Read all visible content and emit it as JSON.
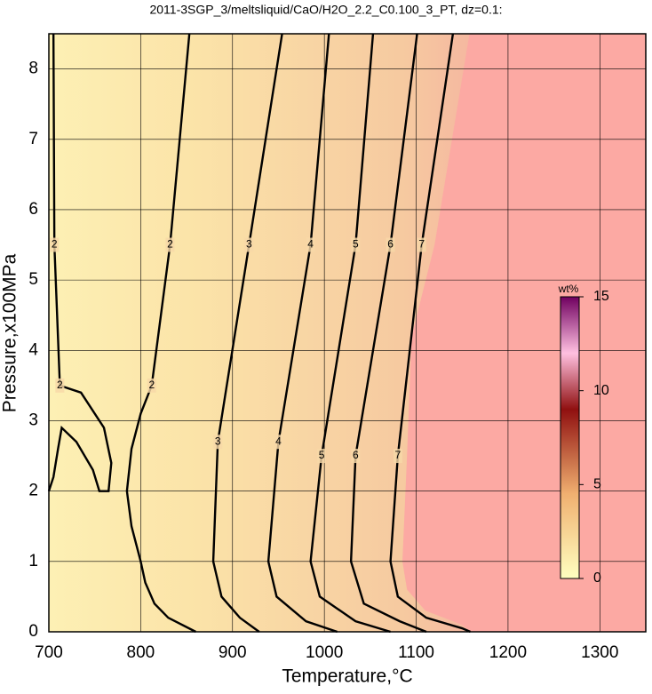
{
  "chart_data": {
    "type": "contour",
    "title": "2011-3SGP_3/meltsliquid/CaO/H2O_2.2_C0.100_3_PT, dz=0.1:",
    "x_label": "Temperature,°C",
    "y_label": "Pressure,x100MPa",
    "xlim": [
      700,
      1350
    ],
    "ylim": [
      0,
      8.5
    ],
    "xticks": [
      700,
      800,
      900,
      1000,
      1100,
      1200,
      1300
    ],
    "yticks": [
      0,
      1,
      2,
      3,
      4,
      5,
      6,
      7,
      8
    ],
    "grid": true,
    "region_color": "#fca9a3",
    "boundary": {
      "x": [
        1158,
        1120,
        1095,
        1090,
        1085,
        1090,
        1110,
        1150,
        1160
      ],
      "y": [
        8.5,
        5.5,
        4.2,
        2.5,
        1.0,
        0.6,
        0.3,
        0.1,
        0
      ]
    },
    "contours": [
      {
        "level": 2,
        "x": [
          705,
          706,
          712,
          735,
          760,
          768,
          765,
          755,
          748,
          730,
          714,
          710,
          705,
          700,
          null,
          853,
          832,
          812,
          800,
          790,
          785,
          790,
          800,
          805,
          815,
          830,
          860
        ],
        "y": [
          8.5,
          5.5,
          3.5,
          3.4,
          2.9,
          2.4,
          2.0,
          2.0,
          2.3,
          2.7,
          2.9,
          2.6,
          2.2,
          2.0,
          null,
          8.5,
          5.5,
          3.5,
          3.1,
          2.6,
          2.0,
          1.5,
          1.0,
          0.7,
          0.4,
          0.2,
          0
        ]
      },
      {
        "level": 3,
        "x": [
          954,
          918,
          884,
          879,
          888,
          908,
          929
        ],
        "y": [
          8.5,
          5.5,
          2.7,
          1.0,
          0.5,
          0.2,
          0
        ]
      },
      {
        "level": 4,
        "x": [
          1005,
          985,
          950,
          939,
          948,
          980,
          1014
        ],
        "y": [
          8.5,
          5.5,
          2.7,
          1.0,
          0.5,
          0.15,
          0
        ]
      },
      {
        "level": 5,
        "x": [
          1053,
          1034,
          997,
          985,
          995,
          1034,
          1072
        ],
        "y": [
          8.5,
          5.5,
          2.5,
          1.0,
          0.5,
          0.15,
          0
        ]
      },
      {
        "level": 6,
        "x": [
          1101,
          1072,
          1034,
          1029,
          1043,
          1082,
          1111
        ],
        "y": [
          8.5,
          5.5,
          2.5,
          1.0,
          0.4,
          0.15,
          0
        ]
      },
      {
        "level": 7,
        "x": [
          1140,
          1106,
          1080,
          1072,
          1080,
          1111,
          1150,
          1159
        ],
        "y": [
          8.5,
          5.5,
          2.5,
          1.0,
          0.5,
          0.2,
          0.05,
          0
        ]
      }
    ],
    "colorbar": {
      "label": "wt%",
      "lim": [
        0,
        15
      ],
      "ticks": [
        0,
        5,
        10,
        15
      ]
    }
  }
}
